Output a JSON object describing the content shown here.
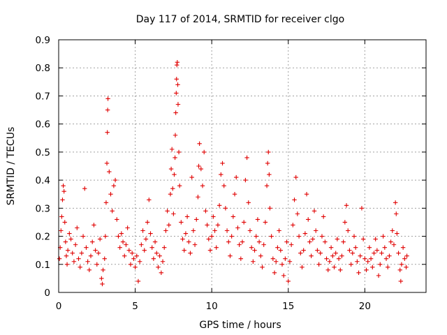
{
  "chart_data": {
    "type": "scatter",
    "title": "Day 117 of 2014, SRMTID for receiver clgo",
    "xlabel": "GPS time / hours",
    "ylabel": "SRMTID / TECUs",
    "xlim": [
      0,
      24
    ],
    "ylim": [
      0,
      0.9
    ],
    "xticks": [
      0,
      5,
      10,
      15,
      20
    ],
    "xtick_labels": [
      "0",
      "5",
      "10",
      "15",
      "20"
    ],
    "yticks": [
      0,
      0.1,
      0.2,
      0.3,
      0.4,
      0.5,
      0.6,
      0.7,
      0.8,
      0.9
    ],
    "ytick_labels": [
      "0",
      "0.1",
      "0.2",
      "0.3",
      "0.4",
      "0.5",
      "0.6",
      "0.7",
      "0.8",
      "0.9"
    ],
    "grid": true,
    "marker": "+",
    "color": "#e00000",
    "series": [
      {
        "name": "SRMTID",
        "points": [
          [
            0.05,
            0.12
          ],
          [
            0.1,
            0.16
          ],
          [
            0.15,
            0.22
          ],
          [
            0.2,
            0.27
          ],
          [
            0.25,
            0.33
          ],
          [
            0.3,
            0.38
          ],
          [
            0.35,
            0.36
          ],
          [
            0.4,
            0.25
          ],
          [
            0.45,
            0.18
          ],
          [
            0.5,
            0.13
          ],
          [
            0.55,
            0.1
          ],
          [
            0.6,
            0.15
          ],
          [
            0.7,
            0.21
          ],
          [
            0.8,
            0.19
          ],
          [
            0.9,
            0.14
          ],
          [
            1.0,
            0.11
          ],
          [
            1.1,
            0.17
          ],
          [
            1.2,
            0.23
          ],
          [
            1.3,
            0.12
          ],
          [
            1.4,
            0.09
          ],
          [
            1.5,
            0.14
          ],
          [
            1.6,
            0.2
          ],
          [
            1.7,
            0.37
          ],
          [
            1.8,
            0.16
          ],
          [
            1.9,
            0.11
          ],
          [
            2.0,
            0.08
          ],
          [
            2.1,
            0.13
          ],
          [
            2.2,
            0.18
          ],
          [
            2.3,
            0.24
          ],
          [
            2.4,
            0.15
          ],
          [
            2.5,
            0.1
          ],
          [
            2.6,
            0.14
          ],
          [
            2.7,
            0.19
          ],
          [
            2.8,
            0.05
          ],
          [
            2.85,
            0.03
          ],
          [
            2.9,
            0.08
          ],
          [
            3.0,
            0.12
          ],
          [
            3.05,
            0.2
          ],
          [
            3.1,
            0.32
          ],
          [
            3.15,
            0.46
          ],
          [
            3.18,
            0.57
          ],
          [
            3.2,
            0.65
          ],
          [
            3.22,
            0.69
          ],
          [
            3.3,
            0.43
          ],
          [
            3.4,
            0.35
          ],
          [
            3.5,
            0.29
          ],
          [
            3.6,
            0.38
          ],
          [
            3.7,
            0.4
          ],
          [
            3.8,
            0.26
          ],
          [
            3.9,
            0.2
          ],
          [
            4.0,
            0.16
          ],
          [
            4.1,
            0.21
          ],
          [
            4.2,
            0.18
          ],
          [
            4.3,
            0.13
          ],
          [
            4.4,
            0.17
          ],
          [
            4.5,
            0.23
          ],
          [
            4.6,
            0.15
          ],
          [
            4.7,
            0.1
          ],
          [
            4.8,
            0.14
          ],
          [
            4.9,
            0.12
          ],
          [
            5.0,
            0.09
          ],
          [
            5.1,
            0.13
          ],
          [
            5.2,
            0.04
          ],
          [
            5.3,
            0.11
          ],
          [
            5.4,
            0.17
          ],
          [
            5.5,
            0.22
          ],
          [
            5.6,
            0.15
          ],
          [
            5.7,
            0.19
          ],
          [
            5.8,
            0.25
          ],
          [
            5.9,
            0.33
          ],
          [
            6.0,
            0.21
          ],
          [
            6.1,
            0.16
          ],
          [
            6.2,
            0.12
          ],
          [
            6.3,
            0.18
          ],
          [
            6.4,
            0.14
          ],
          [
            6.5,
            0.09
          ],
          [
            6.6,
            0.13
          ],
          [
            6.7,
            0.07
          ],
          [
            6.8,
            0.11
          ],
          [
            6.9,
            0.16
          ],
          [
            7.0,
            0.22
          ],
          [
            7.1,
            0.29
          ],
          [
            7.2,
            0.24
          ],
          [
            7.3,
            0.35
          ],
          [
            7.35,
            0.44
          ],
          [
            7.4,
            0.51
          ],
          [
            7.45,
            0.37
          ],
          [
            7.5,
            0.28
          ],
          [
            7.55,
            0.42
          ],
          [
            7.6,
            0.48
          ],
          [
            7.62,
            0.56
          ],
          [
            7.65,
            0.64
          ],
          [
            7.68,
            0.71
          ],
          [
            7.7,
            0.76
          ],
          [
            7.72,
            0.81
          ],
          [
            7.75,
            0.82
          ],
          [
            7.78,
            0.74
          ],
          [
            7.8,
            0.67
          ],
          [
            7.85,
            0.5
          ],
          [
            7.9,
            0.38
          ],
          [
            8.0,
            0.25
          ],
          [
            8.1,
            0.19
          ],
          [
            8.2,
            0.15
          ],
          [
            8.3,
            0.21
          ],
          [
            8.4,
            0.27
          ],
          [
            8.5,
            0.18
          ],
          [
            8.6,
            0.14
          ],
          [
            8.7,
            0.41
          ],
          [
            8.8,
            0.22
          ],
          [
            8.9,
            0.17
          ],
          [
            9.0,
            0.26
          ],
          [
            9.1,
            0.34
          ],
          [
            9.15,
            0.45
          ],
          [
            9.2,
            0.53
          ],
          [
            9.3,
            0.44
          ],
          [
            9.4,
            0.38
          ],
          [
            9.5,
            0.5
          ],
          [
            9.6,
            0.29
          ],
          [
            9.7,
            0.24
          ],
          [
            9.8,
            0.19
          ],
          [
            9.9,
            0.15
          ],
          [
            10.0,
            0.2
          ],
          [
            10.1,
            0.27
          ],
          [
            10.2,
            0.22
          ],
          [
            10.3,
            0.16
          ],
          [
            10.4,
            0.24
          ],
          [
            10.5,
            0.31
          ],
          [
            10.6,
            0.42
          ],
          [
            10.7,
            0.46
          ],
          [
            10.8,
            0.38
          ],
          [
            10.9,
            0.3
          ],
          [
            11.0,
            0.22
          ],
          [
            11.1,
            0.18
          ],
          [
            11.2,
            0.13
          ],
          [
            11.3,
            0.2
          ],
          [
            11.4,
            0.27
          ],
          [
            11.5,
            0.35
          ],
          [
            11.6,
            0.41
          ],
          [
            11.7,
            0.23
          ],
          [
            11.8,
            0.17
          ],
          [
            11.9,
            0.12
          ],
          [
            12.0,
            0.18
          ],
          [
            12.1,
            0.25
          ],
          [
            12.2,
            0.4
          ],
          [
            12.3,
            0.48
          ],
          [
            12.4,
            0.32
          ],
          [
            12.5,
            0.22
          ],
          [
            12.6,
            0.16
          ],
          [
            12.7,
            0.11
          ],
          [
            12.8,
            0.15
          ],
          [
            12.9,
            0.2
          ],
          [
            13.0,
            0.26
          ],
          [
            13.1,
            0.18
          ],
          [
            13.2,
            0.13
          ],
          [
            13.3,
            0.09
          ],
          [
            13.4,
            0.17
          ],
          [
            13.5,
            0.25
          ],
          [
            13.6,
            0.38
          ],
          [
            13.65,
            0.46
          ],
          [
            13.7,
            0.5
          ],
          [
            13.75,
            0.42
          ],
          [
            13.8,
            0.3
          ],
          [
            13.9,
            0.2
          ],
          [
            14.0,
            0.12
          ],
          [
            14.1,
            0.07
          ],
          [
            14.2,
            0.11
          ],
          [
            14.3,
            0.16
          ],
          [
            14.4,
            0.22
          ],
          [
            14.5,
            0.15
          ],
          [
            14.6,
            0.1
          ],
          [
            14.7,
            0.06
          ],
          [
            14.8,
            0.12
          ],
          [
            14.9,
            0.18
          ],
          [
            15.0,
            0.04
          ],
          [
            15.1,
            0.11
          ],
          [
            15.2,
            0.17
          ],
          [
            15.3,
            0.24
          ],
          [
            15.4,
            0.33
          ],
          [
            15.5,
            0.41
          ],
          [
            15.6,
            0.28
          ],
          [
            15.7,
            0.2
          ],
          [
            15.8,
            0.14
          ],
          [
            15.9,
            0.09
          ],
          [
            16.0,
            0.15
          ],
          [
            16.1,
            0.21
          ],
          [
            16.2,
            0.35
          ],
          [
            16.3,
            0.26
          ],
          [
            16.4,
            0.18
          ],
          [
            16.5,
            0.13
          ],
          [
            16.6,
            0.19
          ],
          [
            16.7,
            0.29
          ],
          [
            16.8,
            0.22
          ],
          [
            16.9,
            0.15
          ],
          [
            17.0,
            0.1
          ],
          [
            17.1,
            0.14
          ],
          [
            17.2,
            0.2
          ],
          [
            17.3,
            0.27
          ],
          [
            17.4,
            0.18
          ],
          [
            17.5,
            0.12
          ],
          [
            17.6,
            0.08
          ],
          [
            17.7,
            0.11
          ],
          [
            17.8,
            0.16
          ],
          [
            17.9,
            0.13
          ],
          [
            18.0,
            0.09
          ],
          [
            18.1,
            0.14
          ],
          [
            18.2,
            0.19
          ],
          [
            18.3,
            0.12
          ],
          [
            18.4,
            0.08
          ],
          [
            18.5,
            0.13
          ],
          [
            18.6,
            0.18
          ],
          [
            18.7,
            0.25
          ],
          [
            18.8,
            0.31
          ],
          [
            18.9,
            0.22
          ],
          [
            19.0,
            0.15
          ],
          [
            19.1,
            0.1
          ],
          [
            19.2,
            0.14
          ],
          [
            19.3,
            0.2
          ],
          [
            19.4,
            0.16
          ],
          [
            19.5,
            0.11
          ],
          [
            19.6,
            0.07
          ],
          [
            19.7,
            0.13
          ],
          [
            19.8,
            0.3
          ],
          [
            19.9,
            0.19
          ],
          [
            20.0,
            0.12
          ],
          [
            20.1,
            0.08
          ],
          [
            20.2,
            0.11
          ],
          [
            20.3,
            0.16
          ],
          [
            20.4,
            0.12
          ],
          [
            20.5,
            0.09
          ],
          [
            20.6,
            0.14
          ],
          [
            20.7,
            0.19
          ],
          [
            20.8,
            0.15
          ],
          [
            20.9,
            0.06
          ],
          [
            21.0,
            0.1
          ],
          [
            21.1,
            0.14
          ],
          [
            21.2,
            0.2
          ],
          [
            21.3,
            0.16
          ],
          [
            21.4,
            0.12
          ],
          [
            21.5,
            0.09
          ],
          [
            21.6,
            0.13
          ],
          [
            21.7,
            0.18
          ],
          [
            21.8,
            0.22
          ],
          [
            21.9,
            0.17
          ],
          [
            22.0,
            0.32
          ],
          [
            22.05,
            0.28
          ],
          [
            22.1,
            0.21
          ],
          [
            22.2,
            0.14
          ],
          [
            22.3,
            0.08
          ],
          [
            22.35,
            0.04
          ],
          [
            22.4,
            0.1
          ],
          [
            22.5,
            0.16
          ],
          [
            22.6,
            0.12
          ],
          [
            22.7,
            0.09
          ],
          [
            22.75,
            0.13
          ]
        ]
      }
    ]
  }
}
